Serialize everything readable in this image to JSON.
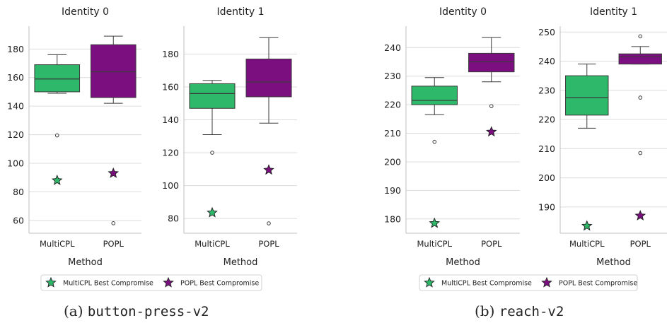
{
  "colors": {
    "multicpl": "#2db86a",
    "popl": "#7c0f7f",
    "grid": "#dcdcdc",
    "axis": "#bfbfbf",
    "text": "#222222"
  },
  "legends": [
    {
      "items": [
        "MultiCPL Best Compromise",
        "POPL Best Compromise"
      ]
    },
    {
      "items": [
        "MultiCPL Best Compromise",
        "POPL Best Compromise"
      ]
    }
  ],
  "captions": [
    {
      "label": "(a)",
      "env": "button-press-v2"
    },
    {
      "label": "(b)",
      "env": "reach-v2"
    }
  ],
  "chart_data": [
    {
      "type": "box",
      "title": "Identity 0",
      "xlabel": "Method",
      "categories": [
        "MultiCPL",
        "POPL"
      ],
      "ylim": [
        51,
        196
      ],
      "yticks": [
        60,
        80,
        100,
        120,
        140,
        160,
        180
      ],
      "boxes": [
        {
          "category": "MultiCPL",
          "q1": 150,
          "median": 159,
          "q3": 169,
          "whisker_low": 149,
          "whisker_high": 176,
          "outliers": [
            119.5
          ]
        },
        {
          "category": "POPL",
          "q1": 146,
          "median": 164,
          "q3": 183,
          "whisker_low": 142,
          "whisker_high": 189,
          "outliers": [
            58
          ]
        }
      ],
      "best_compromise": [
        {
          "series": "MultiCPL Best Compromise",
          "category": "MultiCPL",
          "value": 88
        },
        {
          "series": "POPL Best Compromise",
          "category": "POPL",
          "value": 93
        }
      ]
    },
    {
      "type": "box",
      "title": "Identity 1",
      "xlabel": "Method",
      "categories": [
        "MultiCPL",
        "POPL"
      ],
      "ylim": [
        71,
        197
      ],
      "yticks": [
        80,
        100,
        120,
        140,
        160,
        180
      ],
      "boxes": [
        {
          "category": "MultiCPL",
          "q1": 147,
          "median": 156,
          "q3": 162,
          "whisker_low": 131,
          "whisker_high": 164,
          "outliers": [
            120
          ]
        },
        {
          "category": "POPL",
          "q1": 154,
          "median": 163,
          "q3": 177,
          "whisker_low": 138,
          "whisker_high": 190,
          "outliers": [
            77
          ]
        }
      ],
      "best_compromise": [
        {
          "series": "MultiCPL Best Compromise",
          "category": "MultiCPL",
          "value": 83.5
        },
        {
          "series": "POPL Best Compromise",
          "category": "POPL",
          "value": 109.5
        }
      ]
    },
    {
      "type": "box",
      "title": "Identity 0",
      "xlabel": "Method",
      "categories": [
        "MultiCPL",
        "POPL"
      ],
      "ylim": [
        175,
        247.5
      ],
      "yticks": [
        180,
        190,
        200,
        210,
        220,
        230,
        240
      ],
      "boxes": [
        {
          "category": "MultiCPL",
          "q1": 220,
          "median": 221.5,
          "q3": 226.5,
          "whisker_low": 216.5,
          "whisker_high": 229.5,
          "outliers": [
            207
          ]
        },
        {
          "category": "POPL",
          "q1": 231.5,
          "median": 235,
          "q3": 238,
          "whisker_low": 228,
          "whisker_high": 243.5,
          "outliers": [
            219.5
          ]
        }
      ],
      "best_compromise": [
        {
          "series": "MultiCPL Best Compromise",
          "category": "MultiCPL",
          "value": 178.5
        },
        {
          "series": "POPL Best Compromise",
          "category": "POPL",
          "value": 210.5
        }
      ]
    },
    {
      "type": "box",
      "title": "Identity 1",
      "xlabel": "Method",
      "categories": [
        "MultiCPL",
        "POPL"
      ],
      "ylim": [
        181,
        252
      ],
      "yticks": [
        190,
        200,
        210,
        220,
        230,
        240,
        250
      ],
      "boxes": [
        {
          "category": "MultiCPL",
          "q1": 221.5,
          "median": 227.5,
          "q3": 235,
          "whisker_low": 217,
          "whisker_high": 239,
          "outliers": []
        },
        {
          "category": "POPL",
          "q1": 239,
          "median": 241.5,
          "q3": 242.5,
          "whisker_low": 239,
          "whisker_high": 245,
          "outliers": [
            248.5,
            227.5,
            208.5
          ]
        }
      ],
      "best_compromise": [
        {
          "series": "MultiCPL Best Compromise",
          "category": "MultiCPL",
          "value": 183.5
        },
        {
          "series": "POPL Best Compromise",
          "category": "POPL",
          "value": 187
        }
      ]
    }
  ]
}
